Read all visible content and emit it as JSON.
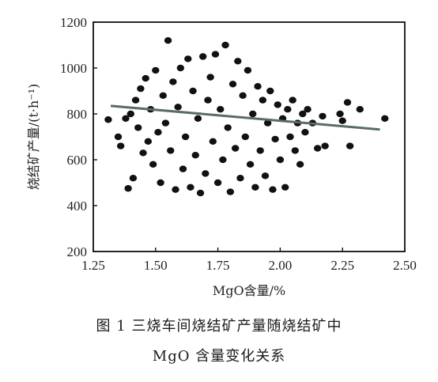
{
  "caption": {
    "line1": "图 1  三烧车间烧结矿产量随烧结矿中",
    "line2": "MgO 含量变化关系"
  },
  "chart_data": {
    "type": "scatter",
    "title": "",
    "xlabel": "MgO含量/%",
    "ylabel": "烧结矿产量/(t·h⁻¹)",
    "xlim": [
      1.25,
      2.5
    ],
    "ylim": [
      200,
      1200
    ],
    "xticks": [
      "1.25",
      "1.50",
      "1.75",
      "2.00",
      "2.25",
      "2.50"
    ],
    "yticks": [
      "200",
      "400",
      "600",
      "800",
      "1000",
      "1200"
    ],
    "grid": false,
    "legend": "none",
    "colors": {
      "points": "#111111",
      "trendline": "#5b6b68",
      "axes": "#111111"
    },
    "trendline": {
      "type": "linear",
      "x": [
        1.32,
        2.4
      ],
      "y": [
        835,
        732
      ]
    },
    "series": [
      {
        "values": [
          [
            1.31,
            775
          ],
          [
            1.35,
            700
          ],
          [
            1.36,
            660
          ],
          [
            1.38,
            780
          ],
          [
            1.39,
            475
          ],
          [
            1.4,
            800
          ],
          [
            1.41,
            520
          ],
          [
            1.42,
            860
          ],
          [
            1.43,
            740
          ],
          [
            1.44,
            910
          ],
          [
            1.45,
            630
          ],
          [
            1.46,
            955
          ],
          [
            1.47,
            680
          ],
          [
            1.48,
            820
          ],
          [
            1.49,
            580
          ],
          [
            1.5,
            990
          ],
          [
            1.51,
            720
          ],
          [
            1.52,
            500
          ],
          [
            1.53,
            880
          ],
          [
            1.54,
            760
          ],
          [
            1.55,
            1120
          ],
          [
            1.56,
            640
          ],
          [
            1.57,
            940
          ],
          [
            1.58,
            470
          ],
          [
            1.59,
            830
          ],
          [
            1.6,
            1000
          ],
          [
            1.61,
            560
          ],
          [
            1.62,
            700
          ],
          [
            1.63,
            1040
          ],
          [
            1.64,
            480
          ],
          [
            1.65,
            900
          ],
          [
            1.66,
            620
          ],
          [
            1.67,
            780
          ],
          [
            1.68,
            455
          ],
          [
            1.69,
            1050
          ],
          [
            1.7,
            540
          ],
          [
            1.71,
            860
          ],
          [
            1.72,
            960
          ],
          [
            1.73,
            680
          ],
          [
            1.74,
            1060
          ],
          [
            1.75,
            500
          ],
          [
            1.76,
            820
          ],
          [
            1.77,
            600
          ],
          [
            1.78,
            1100
          ],
          [
            1.79,
            740
          ],
          [
            1.8,
            460
          ],
          [
            1.81,
            930
          ],
          [
            1.82,
            650
          ],
          [
            1.83,
            1030
          ],
          [
            1.84,
            520
          ],
          [
            1.85,
            880
          ],
          [
            1.86,
            700
          ],
          [
            1.87,
            990
          ],
          [
            1.88,
            580
          ],
          [
            1.89,
            800
          ],
          [
            1.9,
            480
          ],
          [
            1.91,
            920
          ],
          [
            1.92,
            640
          ],
          [
            1.93,
            860
          ],
          [
            1.94,
            530
          ],
          [
            1.95,
            760
          ],
          [
            1.96,
            900
          ],
          [
            1.97,
            470
          ],
          [
            1.98,
            690
          ],
          [
            1.99,
            840
          ],
          [
            2.0,
            600
          ],
          [
            2.01,
            780
          ],
          [
            2.02,
            480
          ],
          [
            2.03,
            820
          ],
          [
            2.04,
            700
          ],
          [
            2.05,
            860
          ],
          [
            2.06,
            640
          ],
          [
            2.07,
            760
          ],
          [
            2.08,
            580
          ],
          [
            2.09,
            800
          ],
          [
            2.1,
            720
          ],
          [
            2.11,
            820
          ],
          [
            2.13,
            760
          ],
          [
            2.15,
            650
          ],
          [
            2.17,
            790
          ],
          [
            2.18,
            660
          ],
          [
            2.24,
            800
          ],
          [
            2.25,
            770
          ],
          [
            2.27,
            850
          ],
          [
            2.28,
            660
          ],
          [
            2.32,
            820
          ],
          [
            2.42,
            780
          ]
        ]
      }
    ]
  }
}
